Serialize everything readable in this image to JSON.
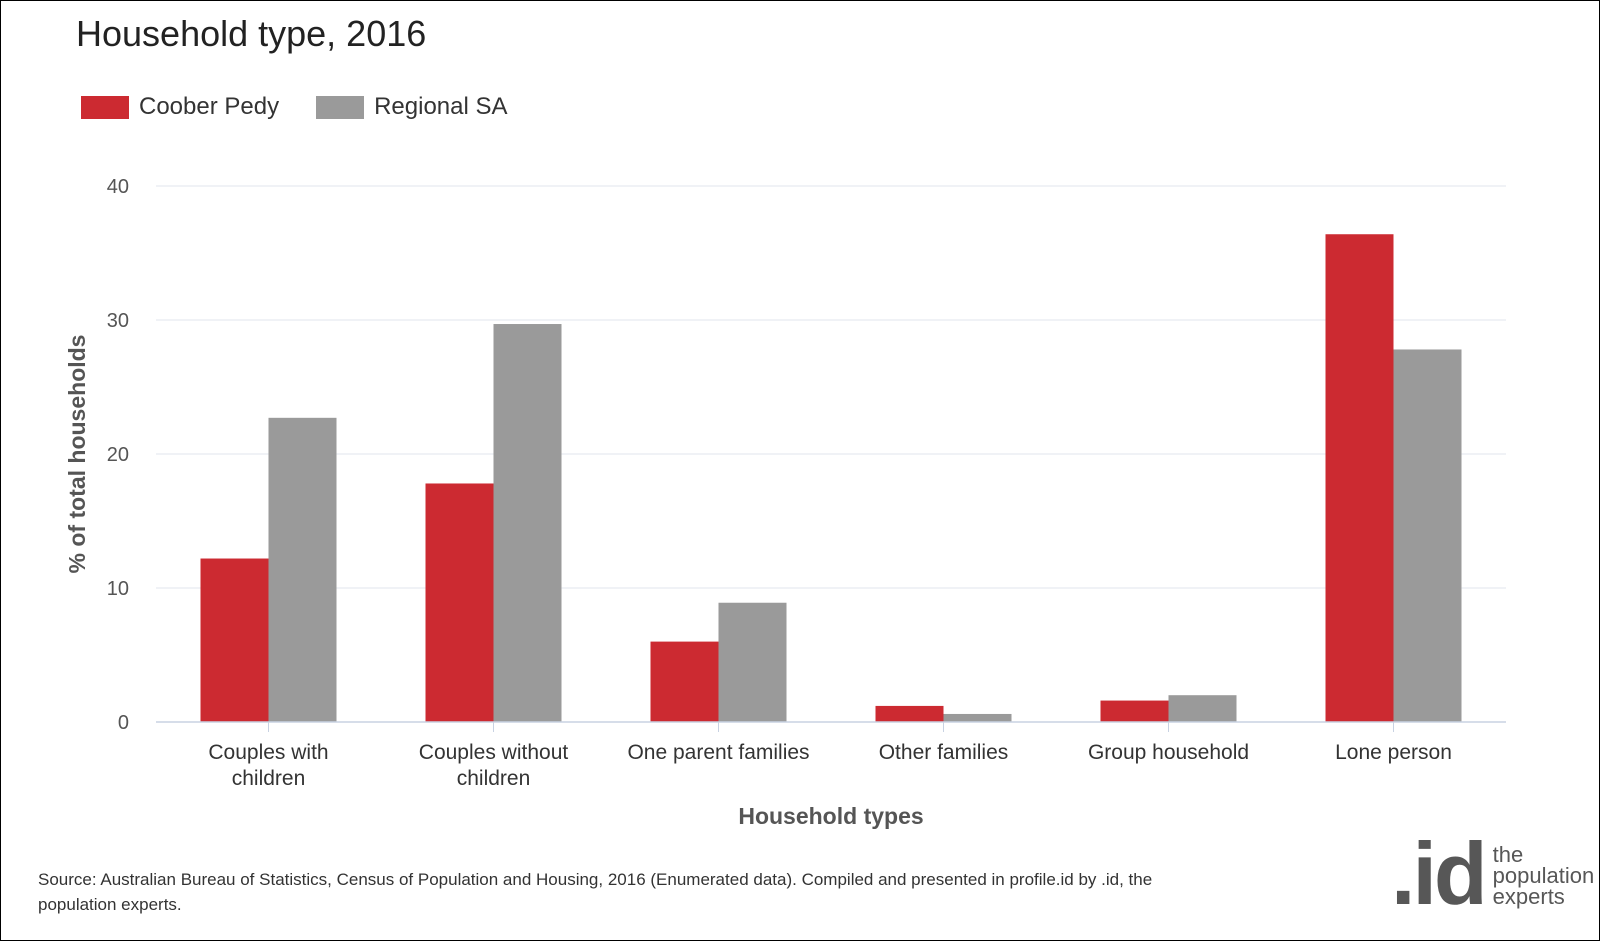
{
  "title": "Household type, 2016",
  "legend": [
    {
      "label": "Coober Pedy",
      "color": "#CC2A31"
    },
    {
      "label": "Regional SA",
      "color": "#9A9A9A"
    }
  ],
  "source": "Source: Australian Bureau of Statistics, Census of Population and Housing, 2016 (Enumerated data). Compiled and presented in profile.id by .id, the population experts.",
  "logo": {
    "mark": ".id",
    "tagline": [
      "the",
      "population",
      "experts"
    ]
  },
  "chart_data": {
    "type": "bar",
    "title": "Household type, 2016",
    "xlabel": "Household types",
    "ylabel": "% of total households",
    "categories": [
      [
        "Couples with",
        "children"
      ],
      [
        "Couples without",
        "children"
      ],
      [
        "One parent families"
      ],
      [
        "Other families"
      ],
      [
        "Group household"
      ],
      [
        "Lone person"
      ]
    ],
    "series": [
      {
        "name": "Coober Pedy",
        "color": "#CC2A31",
        "values": [
          12.2,
          17.8,
          6.0,
          1.2,
          1.6,
          36.4
        ]
      },
      {
        "name": "Regional SA",
        "color": "#9A9A9A",
        "values": [
          22.7,
          29.7,
          8.9,
          0.6,
          2.0,
          27.8
        ]
      }
    ],
    "ylim": [
      0,
      40
    ],
    "yticks": [
      0,
      10,
      20,
      30,
      40
    ],
    "grid": true,
    "legend_position": "top-left"
  }
}
